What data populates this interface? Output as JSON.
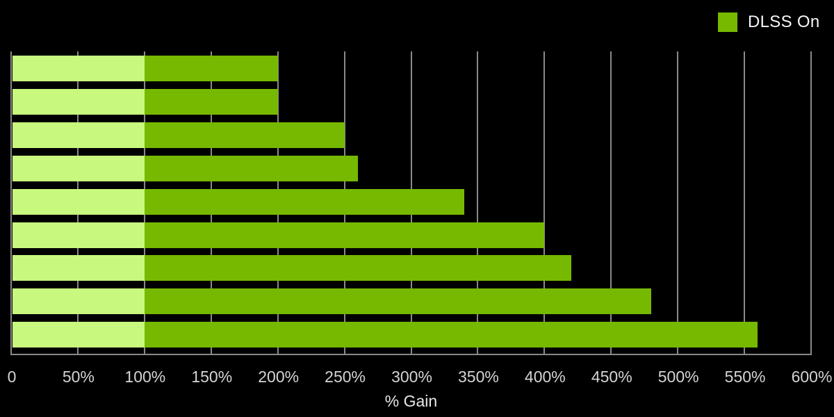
{
  "chart_data": {
    "type": "bar",
    "orientation": "horizontal",
    "xlabel": "% Gain",
    "xlim": [
      0,
      600
    ],
    "x_tick_values": [
      0,
      50,
      100,
      150,
      200,
      250,
      300,
      350,
      400,
      450,
      500,
      550,
      600
    ],
    "x_tick_labels": [
      "0",
      "50%",
      "100%",
      "150%",
      "200%",
      "250%",
      "300%",
      "350%",
      "400%",
      "450%",
      "500%",
      "550%",
      "600%"
    ],
    "grid": "vertical-gridlines",
    "legend": {
      "position": "top-right",
      "label": "DLSS On"
    },
    "baseline_value": 100,
    "series": [
      {
        "name": "DLSS On",
        "values": [
          200,
          200,
          250,
          260,
          340,
          400,
          420,
          480,
          560
        ]
      }
    ]
  },
  "colors": {
    "background": "#000000",
    "bar_gain": "#76b900",
    "bar_baseline": "#c9f87e",
    "gridline": "#8a8a8a",
    "axis_line": "#8a8a8a",
    "tick_label": "#d4d4d4",
    "axis_label": "#e8e8e8",
    "legend_label": "#f7f7f7"
  }
}
